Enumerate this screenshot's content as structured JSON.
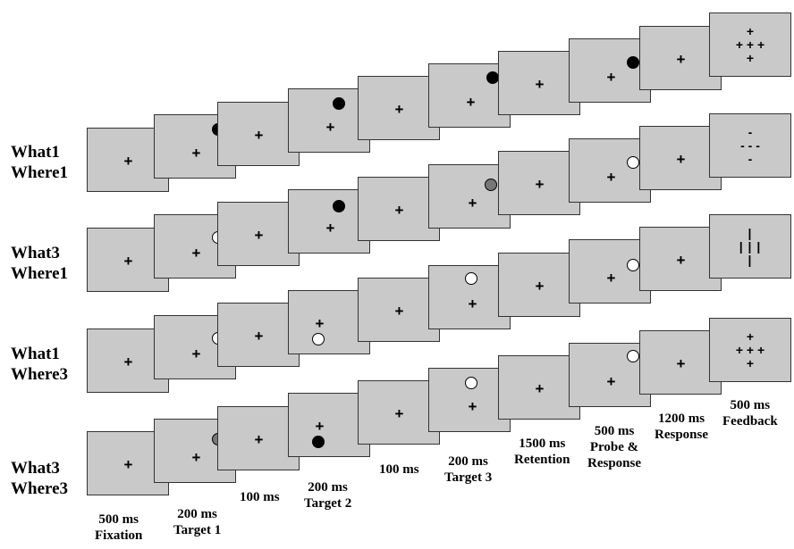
{
  "row_labels": [
    {
      "line1": "What1",
      "line2": "Where1"
    },
    {
      "line1": "What3",
      "line2": "Where1"
    },
    {
      "line1": "What1",
      "line2": "Where3"
    },
    {
      "line1": "What3",
      "line2": "Where3"
    }
  ],
  "timing_labels": [
    {
      "line1": "500 ms",
      "line2": "Fixation"
    },
    {
      "line1": "200 ms",
      "line2": "Target 1"
    },
    {
      "line1": "100 ms",
      "line2": ""
    },
    {
      "line1": "200 ms",
      "line2": "Target 2"
    },
    {
      "line1": "100 ms",
      "line2": ""
    },
    {
      "line1": "200 ms",
      "line2": "Target 3"
    },
    {
      "line1": "1500 ms",
      "line2": "Retention"
    },
    {
      "line1": "500 ms",
      "line2": "Probe &",
      "line3": "Response"
    },
    {
      "line1": "1200 ms",
      "line2": "Response"
    },
    {
      "line1": "500 ms",
      "line2": "Feedback"
    }
  ],
  "fixation_symbol": "+",
  "dot_colors": {
    "black": "#000000",
    "white": "#ffffff",
    "gray": "#777777"
  },
  "panel_color": "#c9c9c9",
  "feedback": [
    {
      "type": "correct-cross",
      "symbols": [
        "+",
        "+ + +",
        "+"
      ]
    },
    {
      "type": "incorrect-minus",
      "symbols": [
        "-",
        "- - -",
        "-"
      ]
    },
    {
      "type": "vertical-bars",
      "symbols": [
        "|",
        "| | |",
        "|"
      ]
    },
    {
      "type": "correct-cross",
      "symbols": [
        "+",
        "+ + +",
        "+"
      ]
    }
  ],
  "rows": [
    {
      "stimuli": [
        "cross",
        "black",
        "cross",
        "black",
        "cross",
        "black",
        "cross",
        "black",
        "cross",
        "feedback"
      ]
    },
    {
      "stimuli": [
        "cross",
        "white",
        "cross",
        "black",
        "cross",
        "gray",
        "cross",
        "white",
        "cross",
        "feedback"
      ]
    },
    {
      "stimuli": [
        "cross",
        "white",
        "cross",
        "white",
        "cross",
        "white",
        "cross",
        "white",
        "cross",
        "feedback"
      ]
    },
    {
      "stimuli": [
        "cross",
        "gray",
        "cross",
        "black",
        "cross",
        "white",
        "cross",
        "white",
        "cross",
        "feedback"
      ]
    }
  ]
}
